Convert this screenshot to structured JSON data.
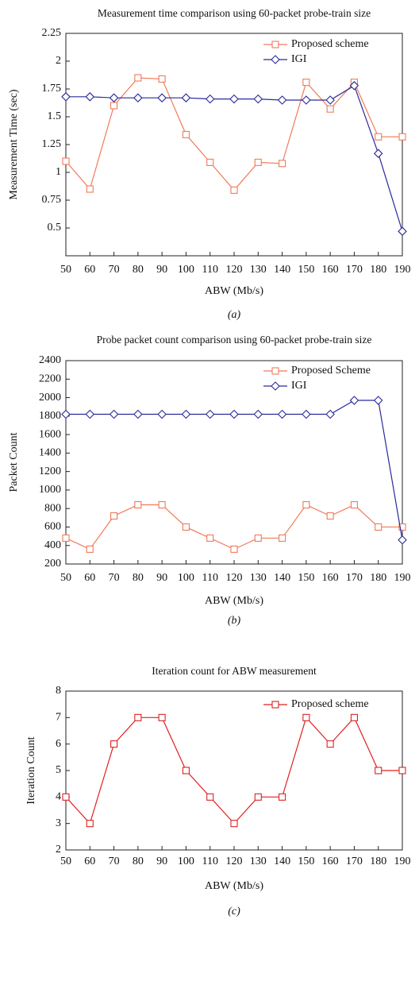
{
  "chart_data": [
    {
      "type": "line",
      "title": "Measurement time comparison using 60-packet probe-train size",
      "x_label": "ABW (Mb/s)",
      "y_label": "Measurement Time (sec)",
      "caption": "(a)",
      "x": [
        50,
        60,
        70,
        80,
        90,
        100,
        110,
        120,
        130,
        140,
        150,
        160,
        170,
        180,
        190
      ],
      "xlim": [
        50,
        190
      ],
      "xticks": [
        50,
        60,
        70,
        80,
        90,
        100,
        110,
        120,
        130,
        140,
        150,
        160,
        170,
        180,
        190
      ],
      "ylim": [
        0.25,
        2.25
      ],
      "yticks": [
        0.5,
        0.75,
        1,
        1.25,
        1.5,
        1.75,
        2,
        2.25
      ],
      "legend": "upper right",
      "series": [
        {
          "name": "Proposed scheme",
          "color": "#f07a5a",
          "marker": "square",
          "values": [
            1.1,
            0.85,
            1.6,
            1.85,
            1.84,
            1.34,
            1.09,
            0.84,
            1.09,
            1.08,
            1.81,
            1.57,
            1.81,
            1.32,
            1.32
          ]
        },
        {
          "name": "IGI",
          "color": "#2a2a9a",
          "marker": "diamond",
          "values": [
            1.68,
            1.68,
            1.67,
            1.67,
            1.67,
            1.67,
            1.66,
            1.66,
            1.66,
            1.65,
            1.65,
            1.65,
            1.78,
            1.17,
            0.47
          ]
        }
      ]
    },
    {
      "type": "line",
      "title": "Probe packet count comparison using 60-packet probe-train size",
      "x_label": "ABW (Mb/s)",
      "y_label": "Packet Count",
      "caption": "(b)",
      "x": [
        50,
        60,
        70,
        80,
        90,
        100,
        110,
        120,
        130,
        140,
        150,
        160,
        170,
        180,
        190
      ],
      "xlim": [
        50,
        190
      ],
      "xticks": [
        50,
        60,
        70,
        80,
        90,
        100,
        110,
        120,
        130,
        140,
        150,
        160,
        170,
        180,
        190
      ],
      "ylim": [
        200,
        2400
      ],
      "yticks": [
        200,
        400,
        600,
        800,
        1000,
        1200,
        1400,
        1600,
        1800,
        2000,
        2200,
        2400
      ],
      "legend": "upper right",
      "series": [
        {
          "name": "Proposed Scheme",
          "color": "#f07a5a",
          "marker": "square",
          "values": [
            480,
            360,
            720,
            840,
            840,
            600,
            480,
            360,
            480,
            480,
            840,
            720,
            840,
            600,
            600
          ]
        },
        {
          "name": "IGI",
          "color": "#2a2a9a",
          "marker": "diamond",
          "values": [
            1820,
            1820,
            1820,
            1820,
            1820,
            1820,
            1820,
            1820,
            1820,
            1820,
            1820,
            1820,
            1970,
            1970,
            460
          ]
        }
      ]
    },
    {
      "type": "line",
      "title": "Iteration count for ABW measurement",
      "x_label": "ABW (Mb/s)",
      "y_label": "Iteration Count",
      "caption": "(c)",
      "x": [
        50,
        60,
        70,
        80,
        90,
        100,
        110,
        120,
        130,
        140,
        150,
        160,
        170,
        180,
        190
      ],
      "xlim": [
        50,
        190
      ],
      "xticks": [
        50,
        60,
        70,
        80,
        90,
        100,
        110,
        120,
        130,
        140,
        150,
        160,
        170,
        180,
        190
      ],
      "ylim": [
        2,
        8
      ],
      "yticks": [
        2,
        3,
        4,
        5,
        6,
        7,
        8
      ],
      "legend": "upper right",
      "series": [
        {
          "name": "Proposed scheme",
          "color": "#e02020",
          "marker": "square",
          "values": [
            4,
            3,
            6,
            7,
            7,
            5,
            4,
            3,
            4,
            4,
            7,
            6,
            7,
            5,
            5
          ]
        }
      ]
    }
  ]
}
